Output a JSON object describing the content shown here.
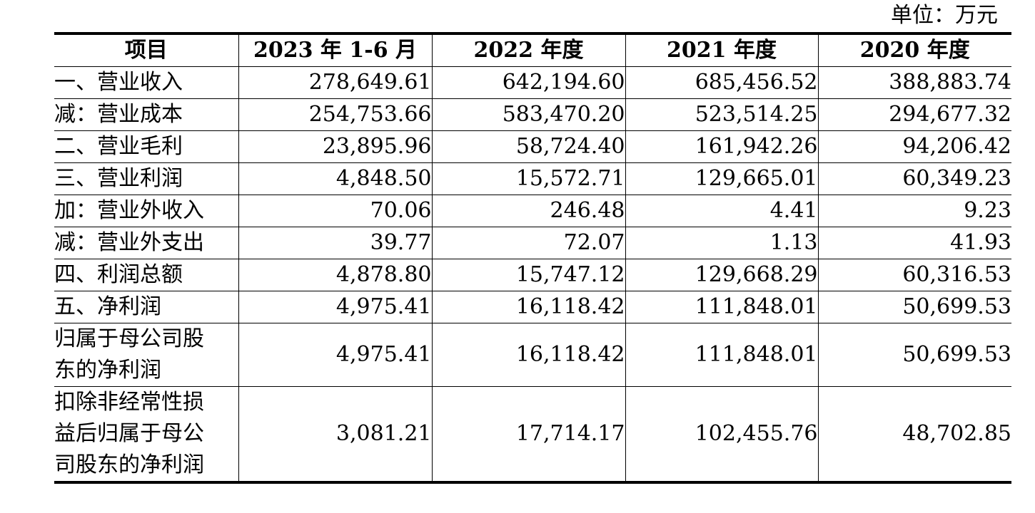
{
  "unit_label": "单位：万元",
  "table": {
    "headers": [
      "项目",
      "2023 年 1-6 月",
      "2022 年度",
      "2021 年度",
      "2020 年度"
    ],
    "rows": [
      {
        "label": "一、营业收入",
        "values": [
          "278,649.61",
          "642,194.60",
          "685,456.52",
          "388,883.74"
        ]
      },
      {
        "label": "减：营业成本",
        "values": [
          "254,753.66",
          "583,470.20",
          "523,514.25",
          "294,677.32"
        ]
      },
      {
        "label": "二、营业毛利",
        "values": [
          "23,895.96",
          "58,724.40",
          "161,942.26",
          "94,206.42"
        ]
      },
      {
        "label": "三、营业利润",
        "values": [
          "4,848.50",
          "15,572.71",
          "129,665.01",
          "60,349.23"
        ]
      },
      {
        "label": "加：营业外收入",
        "values": [
          "70.06",
          "246.48",
          "4.41",
          "9.23"
        ]
      },
      {
        "label": "减：营业外支出",
        "values": [
          "39.77",
          "72.07",
          "1.13",
          "41.93"
        ]
      },
      {
        "label": "四、利润总额",
        "values": [
          "4,878.80",
          "15,747.12",
          "129,668.29",
          "60,316.53"
        ]
      },
      {
        "label": "五、净利润",
        "values": [
          "4,975.41",
          "16,118.42",
          "111,848.01",
          "50,699.53"
        ]
      },
      {
        "label": "归属于母公司股东的净利润",
        "values": [
          "4,975.41",
          "16,118.42",
          "111,848.01",
          "50,699.53"
        ]
      },
      {
        "label": "扣除非经常性损益后归属于母公司股东的净利润",
        "values": [
          "3,081.21",
          "17,714.17",
          "102,455.76",
          "48,702.85"
        ]
      }
    ]
  }
}
